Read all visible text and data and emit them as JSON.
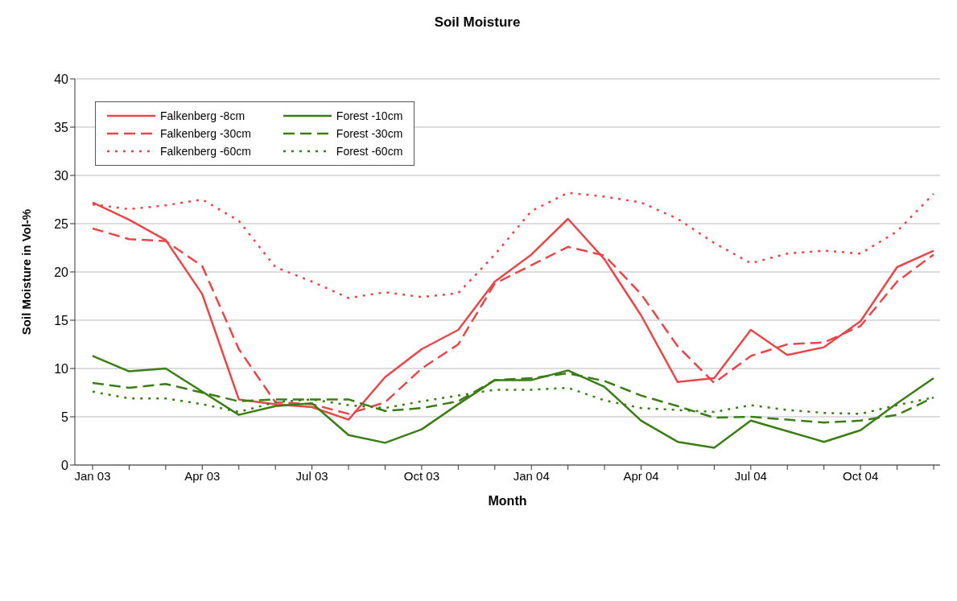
{
  "chart_data": {
    "type": "line",
    "title": "Soil Moisture",
    "xlabel": "Month",
    "ylabel": "Soil Moisture in Vol-%",
    "categories": [
      "Jan 03",
      null,
      null,
      "Apr 03",
      null,
      null,
      "Jul 03",
      null,
      null,
      "Oct 03",
      null,
      null,
      "Jan 04",
      null,
      null,
      "Apr 04",
      null,
      null,
      "Jul 04",
      null,
      null,
      "Oct 04",
      null,
      null
    ],
    "series": [
      {
        "name": "Falkenberg -8cm",
        "color": "#e8474a",
        "line_style": "solid",
        "values": [
          27.2,
          25.4,
          23.3,
          17.7,
          6.8,
          6.3,
          6.0,
          4.7,
          9.1,
          12.0,
          14.0,
          19.0,
          21.8,
          25.5,
          21.3,
          15.5,
          8.6,
          9.0,
          14.0,
          11.4,
          12.2,
          14.9,
          20.5,
          22.2
        ]
      },
      {
        "name": "Falkenberg -30cm",
        "color": "#e8474a",
        "line_style": "dashed",
        "values": [
          24.5,
          23.4,
          23.2,
          20.6,
          12.0,
          6.5,
          6.3,
          5.3,
          6.5,
          10.0,
          12.5,
          18.8,
          20.7,
          22.6,
          21.7,
          17.7,
          12.3,
          8.5,
          11.3,
          12.5,
          12.7,
          14.4,
          19.0,
          21.8
        ]
      },
      {
        "name": "Falkenberg -60cm",
        "color": "#e8474a",
        "line_style": "dotted",
        "values": [
          27.0,
          26.5,
          26.9,
          27.5,
          25.3,
          20.5,
          19.0,
          17.3,
          17.9,
          17.4,
          17.8,
          21.8,
          26.3,
          28.2,
          27.8,
          27.2,
          25.5,
          23.0,
          20.9,
          21.9,
          22.2,
          21.9,
          24.2,
          28.1
        ]
      },
      {
        "name": "Forest -10cm",
        "color": "#3a7d14",
        "line_style": "solid",
        "values": [
          11.3,
          9.7,
          10.0,
          7.6,
          5.2,
          6.1,
          6.4,
          3.1,
          2.3,
          3.7,
          6.3,
          8.8,
          8.8,
          9.8,
          8.1,
          4.6,
          2.4,
          1.8,
          4.6,
          3.5,
          2.4,
          3.6,
          6.4,
          9.0
        ]
      },
      {
        "name": "Forest -30cm",
        "color": "#3a7d14",
        "line_style": "dashed",
        "values": [
          8.5,
          8.0,
          8.4,
          7.5,
          6.6,
          6.8,
          6.8,
          6.8,
          5.6,
          5.9,
          6.6,
          8.8,
          9.0,
          9.5,
          8.7,
          7.2,
          6.1,
          4.9,
          5.0,
          4.7,
          4.4,
          4.6,
          5.2,
          7.0
        ]
      },
      {
        "name": "Forest -60cm",
        "color": "#3a7d14",
        "line_style": "dotted",
        "values": [
          7.6,
          6.9,
          6.9,
          6.3,
          5.5,
          6.5,
          6.8,
          6.2,
          5.9,
          6.6,
          7.2,
          7.8,
          7.8,
          8.0,
          6.7,
          5.9,
          5.7,
          5.5,
          6.2,
          5.7,
          5.4,
          5.3,
          6.2,
          7.0
        ]
      }
    ],
    "ylim": [
      0,
      40
    ],
    "yticks": [
      0,
      5,
      10,
      15,
      20,
      25,
      30,
      35,
      40
    ],
    "grid": "y",
    "legend": "top left",
    "marker": "none"
  }
}
